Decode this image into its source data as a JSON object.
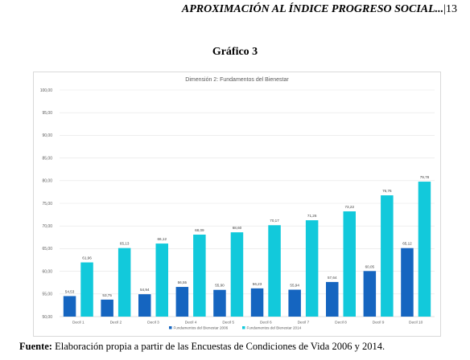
{
  "header": {
    "title": "APROXIMACIÓN AL ÍNDICE PROGRESO SOCIAL...",
    "page_number": "|13"
  },
  "figure_title": "Gráfico 3",
  "chart_data": {
    "type": "bar",
    "title": "Dimensión 2: Fundamentos del Bienestar",
    "categories": [
      "Decil 1",
      "Decil 2",
      "Decil 3",
      "Decil 4",
      "Decil 5",
      "Decil 6",
      "Decil 7",
      "Decil 8",
      "Decil 9",
      "Decil 10"
    ],
    "series": [
      {
        "name": "Fundamentos del Bienestar 2006",
        "color": "#1565c0",
        "values": [
          54.53,
          53.75,
          54.94,
          56.55,
          55.9,
          56.23,
          55.94,
          57.64,
          60.05,
          65.12
        ],
        "labels": [
          "54,53",
          "53,75",
          "54,94",
          "56,55",
          "55,90",
          "56,23",
          "55,94",
          "57,64",
          "60,05",
          "65,12"
        ]
      },
      {
        "name": "Fundamentos del Bienestar 2014",
        "color": "#12c9db",
        "values": [
          61.96,
          65.13,
          66.12,
          68.09,
          68.6,
          70.17,
          71.26,
          73.22,
          76.76,
          79.78
        ],
        "labels": [
          "61,96",
          "65,13",
          "66,12",
          "68,09",
          "68,60",
          "70,17",
          "71,26",
          "73,22",
          "76,76",
          "79,78"
        ]
      }
    ],
    "ylim": [
      50,
      100
    ],
    "yticks": [
      "50,00",
      "55,00",
      "60,00",
      "65,00",
      "70,00",
      "75,00",
      "80,00",
      "85,00",
      "90,00",
      "95,00",
      "100,00"
    ],
    "grid": true,
    "legend_position": "bottom"
  },
  "footer": {
    "label": "Fuente:",
    "text": " Elaboración propia a partir de las Encuestas de Condiciones de Vida 2006 y 2014."
  }
}
